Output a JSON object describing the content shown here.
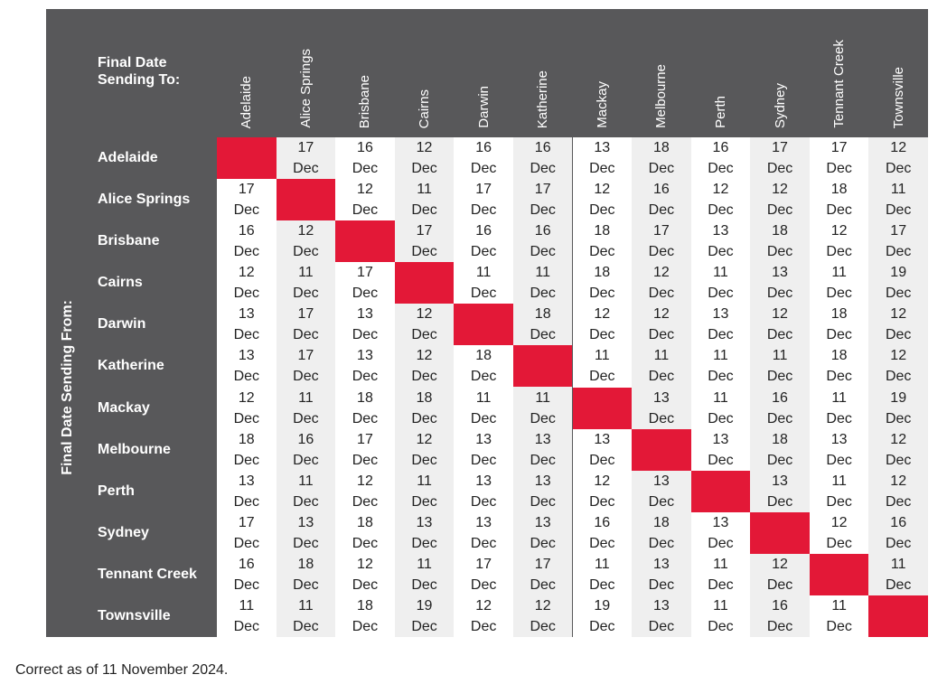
{
  "header": {
    "corner": "Final Date Sending To:",
    "side": "Final Date Sending From:"
  },
  "columns": [
    "Adelaide",
    "Alice Springs",
    "Brisbane",
    "Cairns",
    "Darwin",
    "Katherine",
    "Mackay",
    "Melbourne",
    "Perth",
    "Sydney",
    "Tennant Creek",
    "Townsville"
  ],
  "rows": [
    {
      "label": "Adelaide",
      "cells": [
        null,
        "17 Dec",
        "16 Dec",
        "12 Dec",
        "16 Dec",
        "16 Dec",
        "13 Dec",
        "18 Dec",
        "16 Dec",
        "17 Dec",
        "17 Dec",
        "12 Dec"
      ]
    },
    {
      "label": "Alice Springs",
      "cells": [
        "17 Dec",
        null,
        "12 Dec",
        "11 Dec",
        "17 Dec",
        "17 Dec",
        "12 Dec",
        "16 Dec",
        "12 Dec",
        "12 Dec",
        "18 Dec",
        "11 Dec"
      ]
    },
    {
      "label": "Brisbane",
      "cells": [
        "16 Dec",
        "12 Dec",
        null,
        "17 Dec",
        "16 Dec",
        "16 Dec",
        "18 Dec",
        "17 Dec",
        "13 Dec",
        "18 Dec",
        "12 Dec",
        "17 Dec"
      ]
    },
    {
      "label": "Cairns",
      "cells": [
        "12 Dec",
        "11 Dec",
        "17 Dec",
        null,
        "11 Dec",
        "11 Dec",
        "18 Dec",
        "12 Dec",
        "11 Dec",
        "13 Dec",
        "11 Dec",
        "19 Dec"
      ]
    },
    {
      "label": "Darwin",
      "cells": [
        "13 Dec",
        "17 Dec",
        "13 Dec",
        "12 Dec",
        null,
        "18 Dec",
        "12 Dec",
        "12 Dec",
        "13 Dec",
        "12 Dec",
        "18 Dec",
        "12 Dec"
      ]
    },
    {
      "label": "Katherine",
      "cells": [
        "13 Dec",
        "17 Dec",
        "13 Dec",
        "12 Dec",
        "18 Dec",
        null,
        "11 Dec",
        "11 Dec",
        "11 Dec",
        "11 Dec",
        "18 Dec",
        "12 Dec"
      ]
    },
    {
      "label": "Mackay",
      "cells": [
        "12 Dec",
        "11 Dec",
        "18 Dec",
        "18 Dec",
        "11 Dec",
        "11 Dec",
        null,
        "13 Dec",
        "11 Dec",
        "16 Dec",
        "11 Dec",
        "19 Dec"
      ]
    },
    {
      "label": "Melbourne",
      "cells": [
        "18 Dec",
        "16 Dec",
        "17 Dec",
        "12 Dec",
        "13 Dec",
        "13 Dec",
        "13 Dec",
        null,
        "13 Dec",
        "18 Dec",
        "13 Dec",
        "12 Dec"
      ]
    },
    {
      "label": "Perth",
      "cells": [
        "13 Dec",
        "11 Dec",
        "12 Dec",
        "11 Dec",
        "13 Dec",
        "13 Dec",
        "12 Dec",
        "13 Dec",
        null,
        "13 Dec",
        "11 Dec",
        "12 Dec"
      ]
    },
    {
      "label": "Sydney",
      "cells": [
        "17 Dec",
        "13 Dec",
        "18 Dec",
        "13 Dec",
        "13 Dec",
        "13 Dec",
        "16 Dec",
        "18 Dec",
        "13 Dec",
        null,
        "12 Dec",
        "16 Dec"
      ]
    },
    {
      "label": "Tennant Creek",
      "cells": [
        "16 Dec",
        "18 Dec",
        "12 Dec",
        "11 Dec",
        "17 Dec",
        "17 Dec",
        "11 Dec",
        "13 Dec",
        "11 Dec",
        "12 Dec",
        null,
        "11 Dec"
      ]
    },
    {
      "label": "Townsville",
      "cells": [
        "11 Dec",
        "11 Dec",
        "18 Dec",
        "19 Dec",
        "12 Dec",
        "12 Dec",
        "19 Dec",
        "13 Dec",
        "11 Dec",
        "16 Dec",
        "11 Dec",
        null
      ]
    }
  ],
  "footer": "Correct as of 11 November 2024."
}
